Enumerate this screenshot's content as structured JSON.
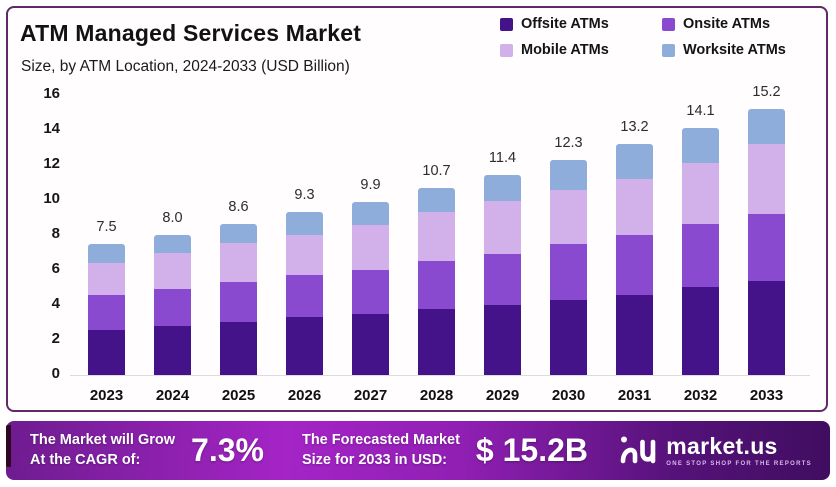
{
  "chart_data": {
    "type": "bar",
    "stacked": true,
    "title": "ATM Managed Services Market",
    "subtitle": "Size, by ATM Location, 2024-2033 (USD Billion)",
    "categories": [
      "2023",
      "2024",
      "2025",
      "2026",
      "2027",
      "2028",
      "2029",
      "2030",
      "2031",
      "2032",
      "2033"
    ],
    "series": [
      {
        "name": "Offsite ATMs",
        "color": "#441289",
        "values": [
          2.6,
          2.8,
          3.0,
          3.3,
          3.5,
          3.8,
          4.0,
          4.3,
          4.6,
          5.0,
          5.4
        ]
      },
      {
        "name": "Onsite ATMs",
        "color": "#8a4ad0",
        "values": [
          2.0,
          2.1,
          2.3,
          2.4,
          2.5,
          2.7,
          2.9,
          3.2,
          3.4,
          3.6,
          3.8
        ]
      },
      {
        "name": "Mobile ATMs",
        "color": "#d2b0ea",
        "values": [
          1.8,
          2.1,
          2.2,
          2.3,
          2.6,
          2.8,
          3.0,
          3.1,
          3.2,
          3.5,
          4.0
        ]
      },
      {
        "name": "Worksite ATMs",
        "color": "#8fadda",
        "values": [
          1.1,
          1.0,
          1.1,
          1.3,
          1.3,
          1.4,
          1.5,
          1.7,
          2.0,
          2.0,
          2.0
        ]
      }
    ],
    "totals_labels": [
      "7.5",
      "8.0",
      "8.6",
      "9.3",
      "9.9",
      "10.7",
      "11.4",
      "12.3",
      "13.2",
      "14.1",
      "15.2"
    ],
    "xlabel": "",
    "ylabel": "",
    "ylim": [
      0,
      16
    ],
    "yticks": [
      0,
      2,
      4,
      6,
      8,
      10,
      12,
      14,
      16
    ],
    "grid": false,
    "legend_position": "top-right"
  },
  "banner": {
    "cagr_label_line1": "The Market will Grow",
    "cagr_label_line2": "At the CAGR of:",
    "cagr_value": "7.3%",
    "forecast_label_line1": "The Forecasted Market",
    "forecast_label_line2": "Size for 2033 in USD:",
    "forecast_value": "$ 15.2B",
    "brand": "market.us",
    "brand_tagline": "ONE STOP SHOP FOR THE REPORTS"
  },
  "colors": {
    "card_border": "#5f2a66",
    "banner_gradient_start": "#a424c6",
    "banner_gradient_end": "#400d60"
  }
}
